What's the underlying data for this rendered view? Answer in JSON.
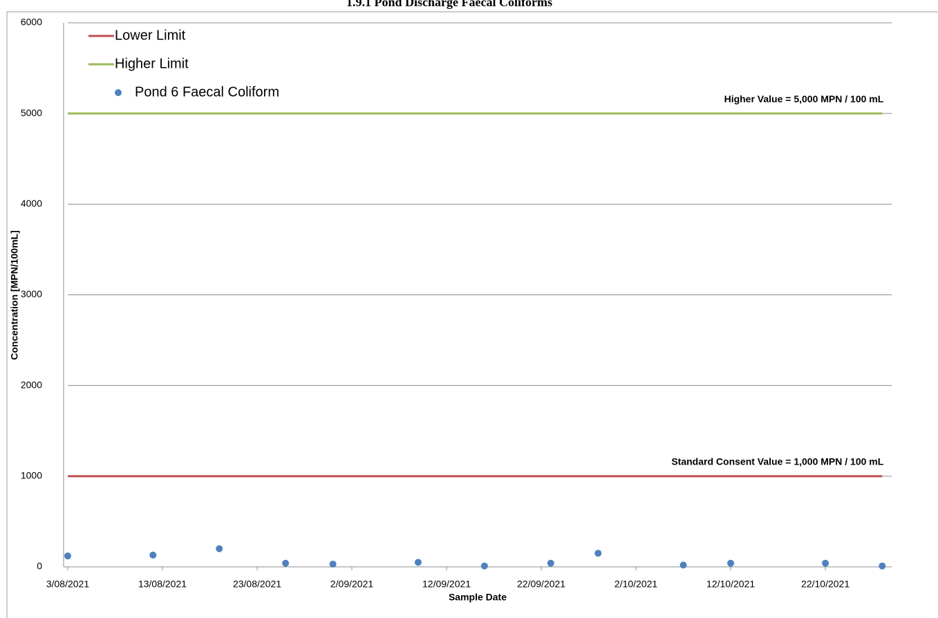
{
  "chart_data": {
    "type": "scatter",
    "title": "1.9.1 Pond Discharge Faecal Coliforms",
    "x_label": "Sample Date",
    "y_label": "Concentration [MPN/100mL]",
    "xlim": [
      "2021-08-03",
      "2021-10-29"
    ],
    "xticks": [
      {
        "value": "2021-08-03",
        "label": "3/08/2021"
      },
      {
        "value": "2021-08-13",
        "label": "13/08/2021"
      },
      {
        "value": "2021-08-23",
        "label": "23/08/2021"
      },
      {
        "value": "2021-09-02",
        "label": "2/09/2021"
      },
      {
        "value": "2021-09-12",
        "label": "12/09/2021"
      },
      {
        "value": "2021-09-22",
        "label": "22/09/2021"
      },
      {
        "value": "2021-10-02",
        "label": "2/10/2021"
      },
      {
        "value": "2021-10-12",
        "label": "12/10/2021"
      },
      {
        "value": "2021-10-22",
        "label": "22/10/2021"
      }
    ],
    "ylim": [
      0,
      6000
    ],
    "yticks": [
      0,
      1000,
      2000,
      3000,
      4000,
      5000,
      6000
    ],
    "grid": true,
    "series": [
      {
        "name": "Lower Limit",
        "mode": "line",
        "color": "#c0504d",
        "x": [
          "2021-08-03",
          "2021-10-28"
        ],
        "values": [
          1000,
          1000
        ]
      },
      {
        "name": "Higher Limit",
        "mode": "line",
        "color": "#9bbb59",
        "x": [
          "2021-08-03",
          "2021-10-28"
        ],
        "values": [
          5000,
          5000
        ]
      },
      {
        "name": "Pond 6 Faecal Coliform",
        "mode": "markers",
        "color": "#4f81bd",
        "x": [
          "2021-08-03",
          "2021-08-12",
          "2021-08-19",
          "2021-08-26",
          "2021-08-31",
          "2021-09-09",
          "2021-09-16",
          "2021-09-23",
          "2021-09-28",
          "2021-10-07",
          "2021-10-12",
          "2021-10-22",
          "2021-10-28"
        ],
        "values": [
          120,
          130,
          200,
          40,
          30,
          50,
          10,
          40,
          150,
          20,
          40,
          40,
          10
        ]
      }
    ],
    "annotations": [
      {
        "text": "Higher Value = 5,000 MPN / 100 mL",
        "x": "2021-10-28",
        "y": 5000
      },
      {
        "text": "Standard Consent Value = 1,000 MPN / 100 mL",
        "x": "2021-10-28",
        "y": 1000
      }
    ]
  }
}
